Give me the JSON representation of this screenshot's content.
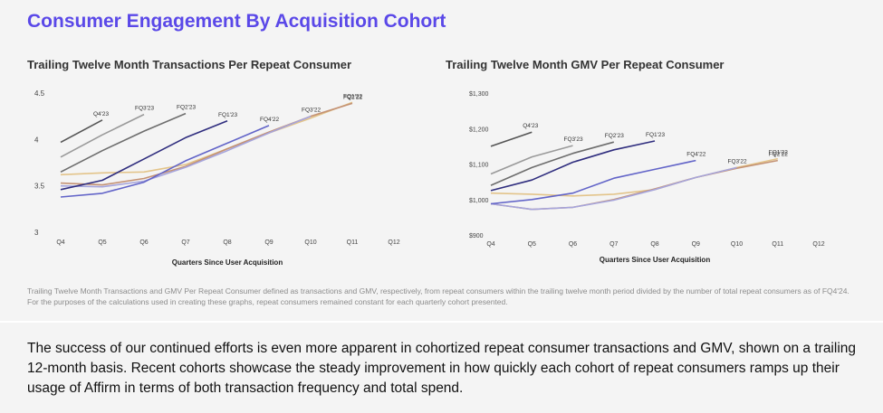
{
  "page": {
    "title": "Consumer Engagement By Acquisition Cohort",
    "footnote": "Trailing Twelve Month Transactions and GMV Per Repeat Consumer defined as transactions and GMV, respectively, from repeat consumers within the trailing twelve month period divided by the number of total repeat consumers as of FQ4'24. For the purposes of the calculations used in creating these graphs, repeat consumers remained constant for each quarterly cohort presented.",
    "body": "The success of our continued efforts is even more apparent in cohortized repeat consumer transactions and GMV, shown on a trailing 12-month basis. Recent cohorts showcase the steady improvement in how quickly each cohort of repeat consumers ramps up their usage of Affirm in terms of both transaction frequency and total spend."
  },
  "colors": {
    "title": "#5a48e8",
    "FQ4'23": "#555555",
    "FQ3'23": "#9a9a9a",
    "FQ2'23": "#6d6d6d",
    "FQ1'23": "#2f2d7e",
    "FQ4'22": "#6264c8",
    "FQ3'22": "#a6a5dc",
    "FQ2'22": "#c49274",
    "FQ1'22": "#e3c48a"
  },
  "chart_data": [
    {
      "type": "line",
      "title": "Trailing Twelve Month Transactions Per Repeat Consumer",
      "xlabel": "Quarters Since User Acquisition",
      "ylabel": "",
      "categories": [
        "Q4",
        "Q5",
        "Q6",
        "Q7",
        "Q8",
        "Q9",
        "Q10",
        "Q11",
        "Q12"
      ],
      "y_ticks": [
        "3",
        "3.5",
        "4",
        "4.5"
      ],
      "ylim": [
        3,
        4.5
      ],
      "grid": false,
      "series": [
        {
          "name": "FQ4'23",
          "values": [
            3.97,
            4.21,
            null,
            null,
            null,
            null,
            null,
            null,
            null
          ]
        },
        {
          "name": "FQ3'23",
          "values": [
            3.81,
            4.05,
            4.27,
            null,
            null,
            null,
            null,
            null,
            null
          ]
        },
        {
          "name": "FQ2'23",
          "values": [
            3.65,
            3.88,
            4.09,
            4.28,
            null,
            null,
            null,
            null,
            null
          ]
        },
        {
          "name": "FQ1'23",
          "values": [
            3.46,
            3.56,
            3.79,
            4.02,
            4.2,
            null,
            null,
            null,
            null
          ]
        },
        {
          "name": "FQ4'22",
          "values": [
            3.38,
            3.42,
            3.54,
            3.77,
            3.96,
            4.15,
            null,
            null,
            null
          ]
        },
        {
          "name": "FQ3'22",
          "values": [
            3.5,
            3.49,
            3.55,
            3.7,
            3.88,
            4.07,
            4.25,
            null,
            null
          ]
        },
        {
          "name": "FQ2'22",
          "values": [
            3.53,
            3.51,
            3.58,
            3.71,
            3.9,
            4.08,
            4.25,
            4.39,
            null
          ]
        },
        {
          "name": "FQ1'22",
          "values": [
            3.62,
            3.64,
            3.65,
            3.73,
            3.9,
            4.07,
            4.23,
            4.4,
            null
          ]
        }
      ]
    },
    {
      "type": "line",
      "title": "Trailing Twelve Month GMV Per Repeat Consumer",
      "xlabel": "Quarters Since User Acquisition",
      "ylabel": "",
      "categories": [
        "Q4",
        "Q5",
        "Q6",
        "Q7",
        "Q8",
        "Q9",
        "Q10",
        "Q11",
        "Q12"
      ],
      "y_ticks": [
        "$900",
        "$1,000",
        "$1,100",
        "$1,200",
        "$1,300"
      ],
      "ylim": [
        900,
        1300
      ],
      "grid": false,
      "series": [
        {
          "name": "FQ4'23",
          "values": [
            1150,
            1190,
            null,
            null,
            null,
            null,
            null,
            null,
            null
          ]
        },
        {
          "name": "FQ3'23",
          "values": [
            1072,
            1120,
            1152,
            null,
            null,
            null,
            null,
            null,
            null
          ]
        },
        {
          "name": "FQ2'23",
          "values": [
            1040,
            1090,
            1130,
            1162,
            null,
            null,
            null,
            null,
            null
          ]
        },
        {
          "name": "FQ1'23",
          "values": [
            1025,
            1055,
            1105,
            1140,
            1165,
            null,
            null,
            null,
            null
          ]
        },
        {
          "name": "FQ4'22",
          "values": [
            988,
            1000,
            1018,
            1060,
            1085,
            1110,
            null,
            null,
            null
          ]
        },
        {
          "name": "FQ3'22",
          "values": [
            988,
            972,
            978,
            998,
            1028,
            1062,
            1090,
            null,
            null
          ]
        },
        {
          "name": "FQ2'22",
          "values": [
            988,
            972,
            978,
            1000,
            1030,
            1062,
            1088,
            1110,
            null
          ]
        },
        {
          "name": "FQ1'22",
          "values": [
            1018,
            1015,
            1010,
            1015,
            1028,
            1062,
            1090,
            1115,
            null
          ]
        }
      ]
    }
  ]
}
